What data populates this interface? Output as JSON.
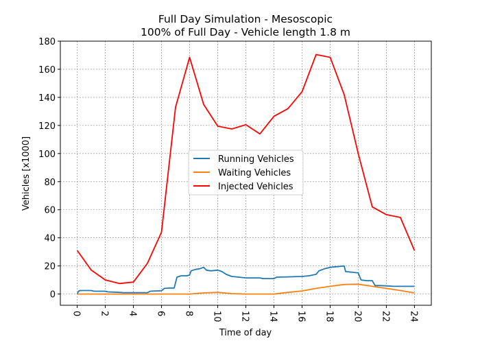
{
  "chart_data": {
    "type": "line",
    "title": "Full Day Simulation - Mesoscopic",
    "subtitle": "100% of Full Day - Vehicle length 1.8 m",
    "xlabel": "Time of day",
    "ylabel": "Vehicles [x1000]",
    "xlim": [
      -1.2,
      25.2
    ],
    "ylim": [
      -8,
      180
    ],
    "xticks": [
      0,
      2,
      4,
      6,
      8,
      10,
      12,
      14,
      16,
      18,
      20,
      22,
      24
    ],
    "yticks": [
      0,
      20,
      40,
      60,
      80,
      100,
      120,
      140,
      160,
      180
    ],
    "xtick_rotation": "vertical",
    "grid": true,
    "legend_position": "center",
    "series": [
      {
        "name": "Running Vehicles",
        "color": "#1f77b4",
        "points": [
          [
            0,
            0
          ],
          [
            0.1,
            2
          ],
          [
            0.2,
            2.5
          ],
          [
            1,
            2.5
          ],
          [
            1.2,
            2
          ],
          [
            2,
            2
          ],
          [
            2.2,
            1.5
          ],
          [
            3,
            1.2
          ],
          [
            3.3,
            1
          ],
          [
            4,
            1
          ],
          [
            5,
            1
          ],
          [
            5.2,
            2
          ],
          [
            5.6,
            2.2
          ],
          [
            6,
            2.3
          ],
          [
            6.2,
            4
          ],
          [
            6.5,
            4.2
          ],
          [
            6.9,
            4.3
          ],
          [
            7.1,
            12
          ],
          [
            7.4,
            13
          ],
          [
            7.8,
            13
          ],
          [
            8,
            13.5
          ],
          [
            8.1,
            16.5
          ],
          [
            8.4,
            17.5
          ],
          [
            8.7,
            18
          ],
          [
            9,
            19
          ],
          [
            9.2,
            17
          ],
          [
            9.5,
            16.5
          ],
          [
            10,
            17
          ],
          [
            10.3,
            16
          ],
          [
            10.6,
            14
          ],
          [
            11,
            12.5
          ],
          [
            11.5,
            12
          ],
          [
            12,
            11.5
          ],
          [
            13,
            11.5
          ],
          [
            13.2,
            11
          ],
          [
            14,
            11
          ],
          [
            14.2,
            12
          ],
          [
            15,
            12.2
          ],
          [
            16,
            12.5
          ],
          [
            16.5,
            13
          ],
          [
            17,
            14
          ],
          [
            17.2,
            16.5
          ],
          [
            17.6,
            18
          ],
          [
            18,
            19
          ],
          [
            18.5,
            19.5
          ],
          [
            19,
            20
          ],
          [
            19.1,
            16
          ],
          [
            19.6,
            15.5
          ],
          [
            20,
            15
          ],
          [
            20.2,
            10
          ],
          [
            20.6,
            9.5
          ],
          [
            21,
            9.5
          ],
          [
            21.2,
            6
          ],
          [
            21.6,
            6
          ],
          [
            22,
            5.8
          ],
          [
            22.5,
            5.5
          ],
          [
            23,
            5.5
          ],
          [
            24,
            5.5
          ]
        ]
      },
      {
        "name": "Waiting Vehicles",
        "color": "#ff7f0e",
        "points": [
          [
            0,
            0
          ],
          [
            1,
            0
          ],
          [
            2,
            0
          ],
          [
            3,
            0
          ],
          [
            4,
            0
          ],
          [
            5,
            0
          ],
          [
            6,
            0
          ],
          [
            7,
            0
          ],
          [
            8,
            0
          ],
          [
            9,
            0.8
          ],
          [
            10,
            1.2
          ],
          [
            11,
            0.3
          ],
          [
            12,
            0
          ],
          [
            13,
            0
          ],
          [
            14,
            0
          ],
          [
            15,
            1.2
          ],
          [
            16,
            2.2
          ],
          [
            17,
            4
          ],
          [
            18,
            5.5
          ],
          [
            19,
            6.8
          ],
          [
            20,
            7
          ],
          [
            21,
            5.5
          ],
          [
            22,
            4
          ],
          [
            23,
            2.5
          ],
          [
            24,
            0.8
          ]
        ]
      },
      {
        "name": "Injected Vehicles",
        "color": "#ff0000",
        "points": [
          [
            0,
            31
          ],
          [
            1,
            17
          ],
          [
            2,
            10
          ],
          [
            3,
            7.5
          ],
          [
            4,
            8.5
          ],
          [
            5,
            22
          ],
          [
            6,
            44
          ],
          [
            7,
            133
          ],
          [
            8,
            168.5
          ],
          [
            9,
            135
          ],
          [
            10,
            119.5
          ],
          [
            11,
            117.5
          ],
          [
            12,
            120.5
          ],
          [
            13,
            114
          ],
          [
            14,
            126.5
          ],
          [
            15,
            132
          ],
          [
            16,
            144
          ],
          [
            17,
            170.5
          ],
          [
            18,
            168.5
          ],
          [
            19,
            142
          ],
          [
            20,
            100
          ],
          [
            21,
            62
          ],
          [
            22,
            56.5
          ],
          [
            23,
            54.5
          ],
          [
            24,
            31
          ]
        ]
      }
    ]
  }
}
